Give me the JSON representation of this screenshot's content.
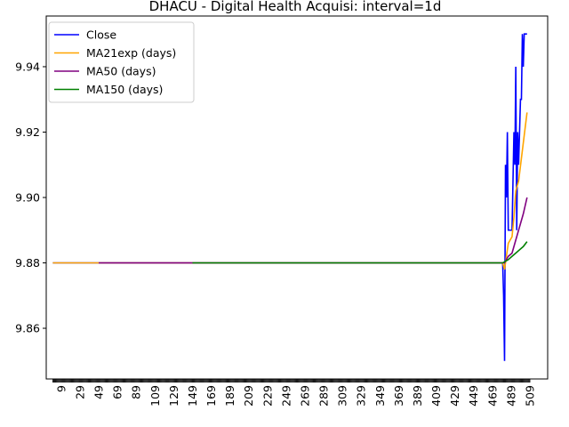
{
  "chart_data": {
    "type": "line",
    "title": "DHACU - Digital Health Acquisi: interval=1d",
    "xlabel": "",
    "ylabel": "",
    "xlim": [
      -7,
      528
    ],
    "ylim": [
      9.8445,
      9.9555
    ],
    "yticks": [
      9.86,
      9.88,
      9.9,
      9.92,
      9.94
    ],
    "ytick_labels": [
      "9.86",
      "9.88",
      "9.90",
      "9.92",
      "9.94"
    ],
    "xticks": [
      9,
      29,
      49,
      69,
      89,
      109,
      129,
      149,
      169,
      189,
      209,
      229,
      249,
      269,
      289,
      309,
      329,
      349,
      369,
      389,
      409,
      429,
      449,
      469,
      489,
      509
    ],
    "xtick_labels": [
      "9",
      "29",
      "49",
      "69",
      "89",
      "109",
      "129",
      "149",
      "169",
      "189",
      "209",
      "229",
      "249",
      "269",
      "289",
      "309",
      "329",
      "349",
      "369",
      "389",
      "409",
      "429",
      "449",
      "469",
      "489",
      "509"
    ],
    "legend": {
      "placement": "top-left"
    },
    "grid": false,
    "series": [
      {
        "name": "Close",
        "color": "#0000ff",
        "points": [
          [
            0,
            9.88
          ],
          [
            480,
            9.88
          ],
          [
            481,
            9.87
          ],
          [
            482,
            9.85
          ],
          [
            483,
            9.91
          ],
          [
            484,
            9.9
          ],
          [
            485,
            9.92
          ],
          [
            486,
            9.89
          ],
          [
            490,
            9.89
          ],
          [
            492,
            9.92
          ],
          [
            493,
            9.91
          ],
          [
            494,
            9.94
          ],
          [
            495,
            9.89
          ],
          [
            496,
            9.92
          ],
          [
            497,
            9.91
          ],
          [
            498,
            9.92
          ],
          [
            499,
            9.93
          ],
          [
            500,
            9.93
          ],
          [
            501,
            9.95
          ],
          [
            502,
            9.94
          ],
          [
            503,
            9.95
          ],
          [
            506,
            9.95
          ]
        ]
      },
      {
        "name": "MA21exp (days)",
        "color": "#ffa500",
        "points": [
          [
            0,
            9.88
          ],
          [
            480,
            9.88
          ],
          [
            482,
            9.878
          ],
          [
            484,
            9.882
          ],
          [
            486,
            9.886
          ],
          [
            490,
            9.888
          ],
          [
            492,
            9.894
          ],
          [
            494,
            9.902
          ],
          [
            497,
            9.905
          ],
          [
            500,
            9.912
          ],
          [
            503,
            9.919
          ],
          [
            506,
            9.926
          ]
        ]
      },
      {
        "name": "MA50 (days)",
        "color": "#800080",
        "points": [
          [
            49,
            9.88
          ],
          [
            480,
            9.88
          ],
          [
            482,
            9.88
          ],
          [
            486,
            9.882
          ],
          [
            490,
            9.883
          ],
          [
            494,
            9.887
          ],
          [
            498,
            9.891
          ],
          [
            502,
            9.895
          ],
          [
            506,
            9.9
          ]
        ]
      },
      {
        "name": "MA150 (days)",
        "color": "#008000",
        "points": [
          [
            149,
            9.88
          ],
          [
            480,
            9.88
          ],
          [
            486,
            9.881
          ],
          [
            490,
            9.882
          ],
          [
            494,
            9.883
          ],
          [
            498,
            9.884
          ],
          [
            502,
            9.885
          ],
          [
            506,
            9.8865
          ]
        ]
      }
    ]
  }
}
